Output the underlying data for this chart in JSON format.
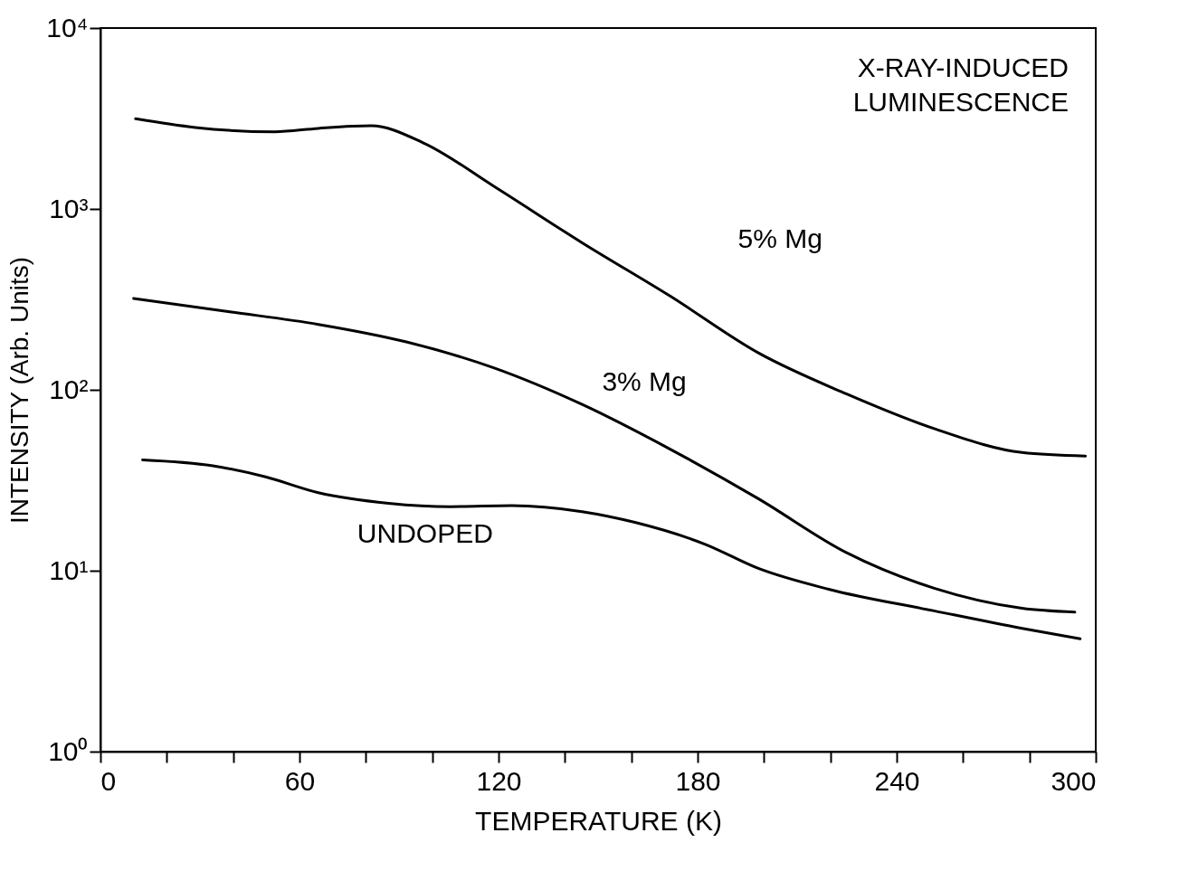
{
  "chart_data": {
    "type": "line",
    "xlabel": "TEMPERATURE (K)",
    "ylabel": "INTENSITY (Arb. Units)",
    "annotations": [
      "X-RAY-INDUCED LUMINESCENCE"
    ],
    "log": true,
    "grid": false,
    "xlim": [
      0,
      300
    ],
    "ylim": [
      1,
      10000
    ],
    "xticks": [
      0,
      {
        "value": 20,
        "label": null
      },
      {
        "value": 40,
        "label": null
      },
      60,
      {
        "value": 80,
        "label": null
      },
      {
        "value": 100,
        "label": null
      },
      120,
      {
        "value": 140,
        "label": null
      },
      {
        "value": 160,
        "label": null
      },
      180,
      {
        "value": 200,
        "label": null
      },
      {
        "value": 220,
        "label": null
      },
      240,
      {
        "value": 260,
        "label": null
      },
      {
        "value": 280,
        "label": null
      },
      300
    ],
    "yticks": [
      {
        "value": 1,
        "label": "10⁰"
      },
      {
        "value": 10,
        "label": "10¹"
      },
      {
        "value": 100,
        "label": "10²"
      },
      {
        "value": 1000,
        "label": "10³"
      },
      {
        "value": 10000,
        "label": "10⁴"
      }
    ],
    "series": [
      {
        "name": "5% Mg",
        "color": "#000000",
        "x": [
          10.6,
          28.6,
          52.5,
          65.7,
          81.6,
          97.5,
          118.7,
          145.2,
          171.7,
          198.3,
          224.8,
          251.3,
          277.8,
          296.9
        ],
        "values": [
          3150,
          2820,
          2670,
          2790,
          2880,
          2310,
          1330,
          650,
          330,
          160,
          95,
          61,
          45,
          43
        ]
      },
      {
        "name": "3% Mg",
        "color": "#000000",
        "x": [
          10,
          39,
          65.7,
          92.2,
          118.7,
          145.2,
          171.7,
          198.3,
          224.8,
          251.3,
          277.8,
          293.7
        ],
        "values": [
          320,
          270,
          230,
          184,
          132,
          83,
          47,
          25,
          12.6,
          8,
          6.2,
          5.9
        ]
      },
      {
        "name": "UNDOPED",
        "color": "#000000",
        "x": [
          12.7,
          33.9,
          49.8,
          65.7,
          86.9,
          105.5,
          124,
          145.2,
          161.1,
          182.3,
          198.3,
          219.5,
          251.3,
          277.8,
          295.3
        ],
        "values": [
          41,
          38,
          33,
          27,
          23.6,
          22.6,
          22.9,
          21.2,
          18.5,
          14,
          10.3,
          7.9,
          6,
          4.8,
          4.2
        ]
      }
    ]
  }
}
